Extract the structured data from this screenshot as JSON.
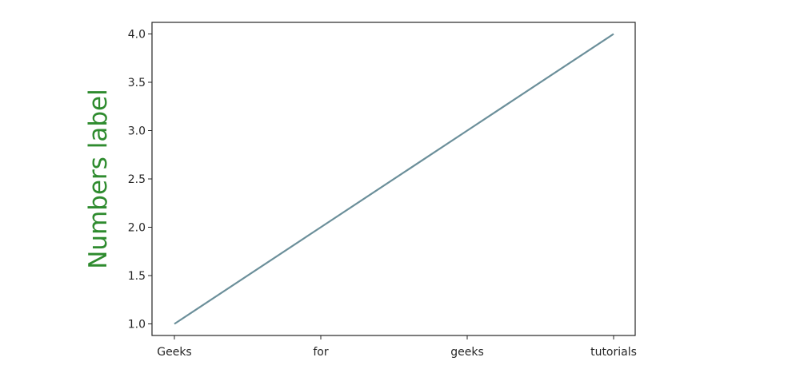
{
  "chart_data": {
    "type": "line",
    "title": "",
    "xlabel": "",
    "ylabel": "Numbers label",
    "categories": [
      "Geeks",
      "for",
      "geeks",
      "tutorials"
    ],
    "series": [
      {
        "values": [
          1,
          2,
          3,
          4
        ]
      }
    ],
    "ylim": [
      0.88,
      4.12
    ],
    "yticks": [
      "1.0",
      "1.5",
      "2.0",
      "2.5",
      "3.0",
      "3.5",
      "4.0"
    ],
    "grid": false,
    "legend": "none"
  },
  "colors": {
    "line": "#6b8f9a",
    "ylabel": "#2e8b2e",
    "axes": "#262626"
  }
}
